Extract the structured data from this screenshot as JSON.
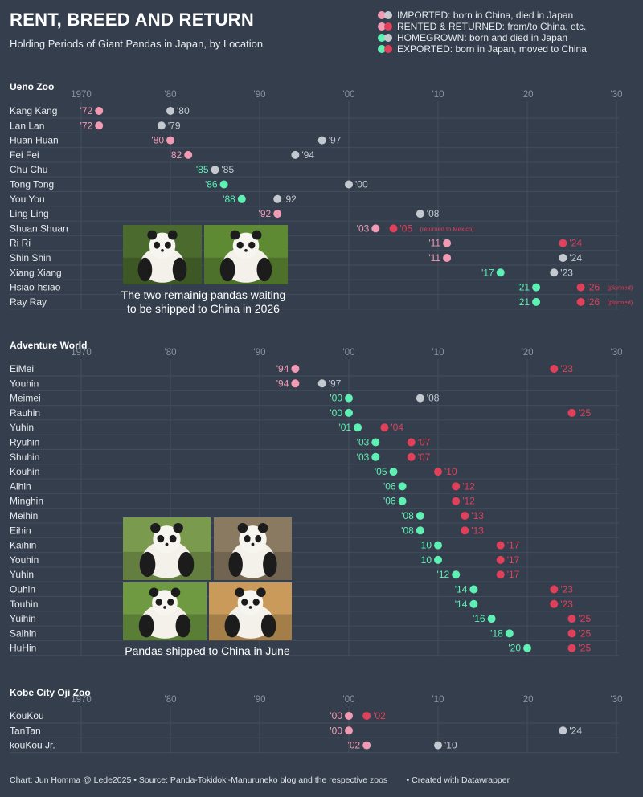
{
  "title": "RENT, BREED AND RETURN",
  "subtitle": "Holding Periods of Giant Pandas in Japan, by Location",
  "colors": {
    "background": "#343e4d",
    "grid": "#434d5c",
    "imported": "#f19ab4",
    "rented": "#e0405a",
    "homegrown": "#5ff0b4",
    "alive_end": "#c4c9d0"
  },
  "legend": [
    {
      "label": "IMPORTED: born in China, died in Japan",
      "from": "#f19ab4",
      "to": "#c4c9d0"
    },
    {
      "label": "RENTED & RETURNED: from/to China, etc.",
      "from": "#f19ab4",
      "to": "#e0405a"
    },
    {
      "label": "HOMEGROWN: born and died in Japan",
      "from": "#5ff0b4",
      "to": "#c4c9d0"
    },
    {
      "label": "EXPORTED: born in Japan, moved to China",
      "from": "#5ff0b4",
      "to": "#e0405a"
    }
  ],
  "chart_data": [
    {
      "type": "dumbbell",
      "panel": "Ueno Zoo",
      "x_ticks": [
        "1970",
        "'80",
        "'90",
        "'00",
        "'10",
        "'20",
        "'30"
      ],
      "xlim": [
        1970,
        2030
      ],
      "rows": [
        {
          "name": "Kang Kang",
          "start": 1972,
          "end": 1980,
          "start_label": "'72",
          "end_label": "'80",
          "category": "imported"
        },
        {
          "name": "Lan Lan",
          "start": 1972,
          "end": 1979,
          "start_label": "'72",
          "end_label": "'79",
          "category": "imported"
        },
        {
          "name": "Huan Huan",
          "start": 1980,
          "end": 1997,
          "start_label": "'80",
          "end_label": "'97",
          "category": "imported"
        },
        {
          "name": "Fei Fei",
          "start": 1982,
          "end": 1994,
          "start_label": "'82",
          "end_label": "'94",
          "category": "imported"
        },
        {
          "name": "Chu Chu",
          "start": 1985,
          "end": 1985,
          "start_label": "'85",
          "end_label": "'85",
          "category": "homegrown"
        },
        {
          "name": "Tong Tong",
          "start": 1986,
          "end": 2000,
          "start_label": "'86",
          "end_label": "'00",
          "category": "homegrown"
        },
        {
          "name": "You You",
          "start": 1988,
          "end": 1992,
          "start_label": "'88",
          "end_label": "'92",
          "category": "homegrown"
        },
        {
          "name": "Ling Ling",
          "start": 1992,
          "end": 2008,
          "start_label": "'92",
          "end_label": "'08",
          "category": "imported"
        },
        {
          "name": "Shuan Shuan",
          "start": 2003,
          "end": 2005,
          "start_label": "'03",
          "end_label": "'05",
          "note": "(returned to Mexico)",
          "category": "rented"
        },
        {
          "name": "Ri Ri",
          "start": 2011,
          "end": 2024,
          "start_label": "'11",
          "end_label": "'24",
          "category": "rented"
        },
        {
          "name": "Shin Shin",
          "start": 2011,
          "end": 2024,
          "start_label": "'11",
          "end_label": "'24",
          "category": "imported"
        },
        {
          "name": "Xiang Xiang",
          "start": 2017,
          "end": 2023,
          "start_label": "'17",
          "end_label": "'23",
          "category": "homegrown"
        },
        {
          "name": "Hsiao-hsiao",
          "start": 2021,
          "end": 2026,
          "start_label": "'21",
          "end_label": "'26",
          "note": "(planned)",
          "category": "exported"
        },
        {
          "name": "Ray Ray",
          "start": 2021,
          "end": 2026,
          "start_label": "'21",
          "end_label": "'26",
          "note": "(planned)",
          "category": "exported"
        }
      ]
    },
    {
      "type": "dumbbell",
      "panel": "Adventure World",
      "x_ticks": [
        "1970",
        "'80",
        "'90",
        "'00",
        "'10",
        "'20",
        "'30"
      ],
      "xlim": [
        1970,
        2030
      ],
      "rows": [
        {
          "name": "EiMei",
          "start": 1994,
          "end": 2023,
          "start_label": "'94",
          "end_label": "'23",
          "category": "rented"
        },
        {
          "name": "Youhin",
          "start": 1994,
          "end": 1997,
          "start_label": "'94",
          "end_label": "'97",
          "category": "imported"
        },
        {
          "name": "Meimei",
          "start": 2000,
          "end": 2008,
          "start_label": "'00",
          "end_label": "'08",
          "category": "homegrown"
        },
        {
          "name": "Rauhin",
          "start": 2000,
          "end": 2025,
          "start_label": "'00",
          "end_label": "'25",
          "category": "exported"
        },
        {
          "name": "Yuhin",
          "start": 2001,
          "end": 2004,
          "start_label": "'01",
          "end_label": "'04",
          "category": "exported"
        },
        {
          "name": "Ryuhin",
          "start": 2003,
          "end": 2007,
          "start_label": "'03",
          "end_label": "'07",
          "category": "exported"
        },
        {
          "name": "Shuhin",
          "start": 2003,
          "end": 2007,
          "start_label": "'03",
          "end_label": "'07",
          "category": "exported"
        },
        {
          "name": "Kouhin",
          "start": 2005,
          "end": 2010,
          "start_label": "'05",
          "end_label": "'10",
          "category": "exported"
        },
        {
          "name": "Aihin",
          "start": 2006,
          "end": 2012,
          "start_label": "'06",
          "end_label": "'12",
          "category": "exported"
        },
        {
          "name": "Minghin",
          "start": 2006,
          "end": 2012,
          "start_label": "'06",
          "end_label": "'12",
          "category": "exported"
        },
        {
          "name": "Meihin",
          "start": 2008,
          "end": 2013,
          "start_label": "'08",
          "end_label": "'13",
          "category": "exported"
        },
        {
          "name": "Eihin",
          "start": 2008,
          "end": 2013,
          "start_label": "'08",
          "end_label": "'13",
          "category": "exported"
        },
        {
          "name": "Kaihin",
          "start": 2010,
          "end": 2017,
          "start_label": "'10",
          "end_label": "'17",
          "category": "exported"
        },
        {
          "name": "Youhin",
          "start": 2010,
          "end": 2017,
          "start_label": "'10",
          "end_label": "'17",
          "category": "exported"
        },
        {
          "name": "Yuhin",
          "start": 2012,
          "end": 2017,
          "start_label": "'12",
          "end_label": "'17",
          "category": "exported"
        },
        {
          "name": "Ouhin",
          "start": 2014,
          "end": 2023,
          "start_label": "'14",
          "end_label": "'23",
          "category": "exported"
        },
        {
          "name": "Touhin",
          "start": 2014,
          "end": 2023,
          "start_label": "'14",
          "end_label": "'23",
          "category": "exported"
        },
        {
          "name": "Yuihin",
          "start": 2016,
          "end": 2025,
          "start_label": "'16",
          "end_label": "'25",
          "category": "exported"
        },
        {
          "name": "Saihin",
          "start": 2018,
          "end": 2025,
          "start_label": "'18",
          "end_label": "'25",
          "category": "exported"
        },
        {
          "name": "HuHin",
          "start": 2020,
          "end": 2025,
          "start_label": "'20",
          "end_label": "'25",
          "category": "exported"
        }
      ]
    },
    {
      "type": "dumbbell",
      "panel": "Kobe City Oji Zoo",
      "x_ticks": [
        "1970",
        "'80",
        "'90",
        "'00",
        "'10",
        "'20",
        "'30"
      ],
      "xlim": [
        1970,
        2030
      ],
      "rows": [
        {
          "name": "KouKou",
          "start": 2000,
          "end": 2002,
          "start_label": "'00",
          "end_label": "'02",
          "category": "rented"
        },
        {
          "name": "TanTan",
          "start": 2000,
          "end": 2024,
          "start_label": "'00",
          "end_label": "'24",
          "category": "imported"
        },
        {
          "name": "kouKou Jr.",
          "start": 2002,
          "end": 2010,
          "start_label": "'02",
          "end_label": "'10",
          "category": "imported"
        }
      ]
    }
  ],
  "photos": {
    "ueno_caption": "The two remainig pandas waiting to be shipped to China in 2026",
    "ueno_caption_line1": "The two remainig pandas waiting",
    "ueno_caption_line2": "to be shipped to China in 2026",
    "adventure_caption": "Pandas shipped to China in June"
  },
  "footer": "Chart: Jun Homma @ Lede2025 • Source: Panda-Tokidoki-Manuruneko blog and the respective zoos        • Created with Datawrapper"
}
